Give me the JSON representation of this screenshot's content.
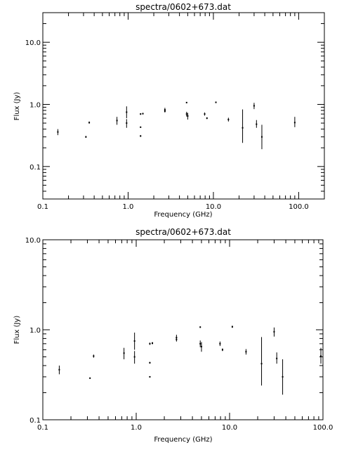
{
  "chart_data": [
    {
      "type": "scatter",
      "title": "spectra/0602+673.dat",
      "xlabel": "Frequency (GHz)",
      "ylabel": "Flux (Jy)",
      "xscale": "log",
      "yscale": "log",
      "xlim": [
        0.1,
        200
      ],
      "ylim": [
        0.03,
        30
      ],
      "xticks": [
        "0.1",
        "1.0",
        "10.0",
        "100.0"
      ],
      "yticks": [
        "0.1",
        "1.0",
        "10.0"
      ],
      "grid": false,
      "points": [
        {
          "x": 0.15,
          "y": 0.36,
          "lo": 0.32,
          "hi": 0.4
        },
        {
          "x": 0.32,
          "y": 0.3,
          "lo": 0.29,
          "hi": 0.31
        },
        {
          "x": 0.35,
          "y": 0.51,
          "lo": 0.49,
          "hi": 0.53
        },
        {
          "x": 0.74,
          "y": 0.55,
          "lo": 0.47,
          "hi": 0.63
        },
        {
          "x": 0.96,
          "y": 0.75,
          "lo": 0.6,
          "hi": 0.93
        },
        {
          "x": 0.96,
          "y": 0.5,
          "lo": 0.42,
          "hi": 0.58
        },
        {
          "x": 1.4,
          "y": 0.7,
          "lo": 0.68,
          "hi": 0.72
        },
        {
          "x": 1.4,
          "y": 0.43,
          "lo": 0.42,
          "hi": 0.44
        },
        {
          "x": 1.4,
          "y": 0.31,
          "lo": 0.3,
          "hi": 0.32
        },
        {
          "x": 1.49,
          "y": 0.71,
          "lo": 0.69,
          "hi": 0.73
        },
        {
          "x": 2.7,
          "y": 0.82,
          "lo": 0.76,
          "hi": 0.88
        },
        {
          "x": 2.7,
          "y": 0.78,
          "lo": 0.74,
          "hi": 0.82
        },
        {
          "x": 4.85,
          "y": 1.07,
          "lo": 1.05,
          "hi": 1.09
        },
        {
          "x": 4.85,
          "y": 0.7,
          "lo": 0.64,
          "hi": 0.76
        },
        {
          "x": 5.0,
          "y": 0.65,
          "lo": 0.57,
          "hi": 0.73
        },
        {
          "x": 7.9,
          "y": 0.7,
          "lo": 0.66,
          "hi": 0.74
        },
        {
          "x": 8.4,
          "y": 0.6,
          "lo": 0.58,
          "hi": 0.62
        },
        {
          "x": 10.7,
          "y": 1.08,
          "lo": 1.05,
          "hi": 1.11
        },
        {
          "x": 15.0,
          "y": 0.57,
          "lo": 0.53,
          "hi": 0.61
        },
        {
          "x": 22.0,
          "y": 0.42,
          "lo": 0.24,
          "hi": 0.83
        },
        {
          "x": 30.0,
          "y": 0.95,
          "lo": 0.84,
          "hi": 1.06
        },
        {
          "x": 32.0,
          "y": 0.48,
          "lo": 0.42,
          "hi": 0.56
        },
        {
          "x": 37.0,
          "y": 0.3,
          "lo": 0.19,
          "hi": 0.47
        },
        {
          "x": 90.0,
          "y": 0.51,
          "lo": 0.43,
          "hi": 0.63
        }
      ]
    },
    {
      "type": "scatter",
      "title": "spectra/0602+673.dat",
      "xlabel": "Frequency (GHz)",
      "ylabel": "Flux (Jy)",
      "xscale": "log",
      "yscale": "log",
      "xlim": [
        0.1,
        100
      ],
      "ylim": [
        0.1,
        10
      ],
      "xticks": [
        "0.1",
        "1.0",
        "10.0",
        "100.0"
      ],
      "yticks": [
        "0.1",
        "1.0",
        "10.0"
      ],
      "grid": false,
      "points": [
        {
          "x": 0.15,
          "y": 0.36,
          "lo": 0.32,
          "hi": 0.4
        },
        {
          "x": 0.32,
          "y": 0.29,
          "lo": 0.285,
          "hi": 0.295
        },
        {
          "x": 0.35,
          "y": 0.51,
          "lo": 0.49,
          "hi": 0.53
        },
        {
          "x": 0.74,
          "y": 0.55,
          "lo": 0.47,
          "hi": 0.63
        },
        {
          "x": 0.96,
          "y": 0.75,
          "lo": 0.6,
          "hi": 0.93
        },
        {
          "x": 0.96,
          "y": 0.5,
          "lo": 0.42,
          "hi": 0.58
        },
        {
          "x": 1.4,
          "y": 0.7,
          "lo": 0.68,
          "hi": 0.72
        },
        {
          "x": 1.4,
          "y": 0.43,
          "lo": 0.42,
          "hi": 0.44
        },
        {
          "x": 1.4,
          "y": 0.3,
          "lo": 0.295,
          "hi": 0.305
        },
        {
          "x": 1.49,
          "y": 0.71,
          "lo": 0.69,
          "hi": 0.73
        },
        {
          "x": 2.7,
          "y": 0.82,
          "lo": 0.76,
          "hi": 0.88
        },
        {
          "x": 2.7,
          "y": 0.78,
          "lo": 0.74,
          "hi": 0.82
        },
        {
          "x": 4.85,
          "y": 1.07,
          "lo": 1.05,
          "hi": 1.09
        },
        {
          "x": 4.85,
          "y": 0.7,
          "lo": 0.64,
          "hi": 0.76
        },
        {
          "x": 5.0,
          "y": 0.65,
          "lo": 0.57,
          "hi": 0.73
        },
        {
          "x": 7.9,
          "y": 0.7,
          "lo": 0.66,
          "hi": 0.74
        },
        {
          "x": 8.4,
          "y": 0.6,
          "lo": 0.58,
          "hi": 0.62
        },
        {
          "x": 10.7,
          "y": 1.08,
          "lo": 1.05,
          "hi": 1.11
        },
        {
          "x": 15.0,
          "y": 0.57,
          "lo": 0.53,
          "hi": 0.61
        },
        {
          "x": 22.0,
          "y": 0.42,
          "lo": 0.24,
          "hi": 0.83
        },
        {
          "x": 30.0,
          "y": 0.95,
          "lo": 0.84,
          "hi": 1.06
        },
        {
          "x": 32.0,
          "y": 0.48,
          "lo": 0.42,
          "hi": 0.56
        },
        {
          "x": 37.0,
          "y": 0.3,
          "lo": 0.19,
          "hi": 0.47
        },
        {
          "x": 95.0,
          "y": 0.51,
          "lo": 0.42,
          "hi": 0.63
        }
      ]
    }
  ]
}
